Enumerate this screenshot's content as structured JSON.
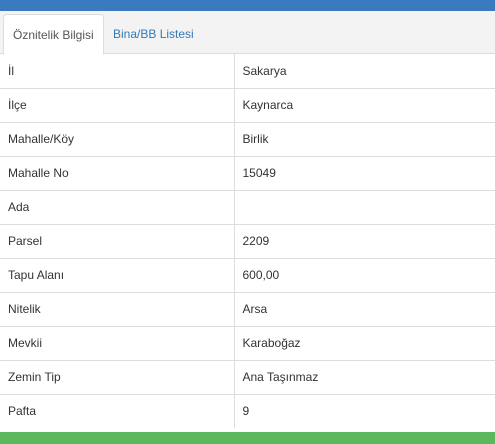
{
  "tabs": [
    {
      "label": "Öznitelik Bilgisi",
      "active": true
    },
    {
      "label": "Bina/BB Listesi",
      "active": false
    }
  ],
  "attributes": [
    {
      "key": "İl",
      "value": "Sakarya"
    },
    {
      "key": "İlçe",
      "value": "Kaynarca"
    },
    {
      "key": "Mahalle/Köy",
      "value": "Birlik"
    },
    {
      "key": "Mahalle No",
      "value": "15049"
    },
    {
      "key": "Ada",
      "value": ""
    },
    {
      "key": "Parsel",
      "value": "2209"
    },
    {
      "key": "Tapu Alanı",
      "value": "600,00"
    },
    {
      "key": "Nitelik",
      "value": "Arsa"
    },
    {
      "key": "Mevkii",
      "value": "Karaboğaz"
    },
    {
      "key": "Zemin Tip",
      "value": "Ana Taşınmaz"
    },
    {
      "key": "Pafta",
      "value": "9"
    }
  ],
  "colors": {
    "header_bar": "#3a7bbf",
    "footer_bar": "#5cb85c",
    "link": "#337ab7"
  }
}
